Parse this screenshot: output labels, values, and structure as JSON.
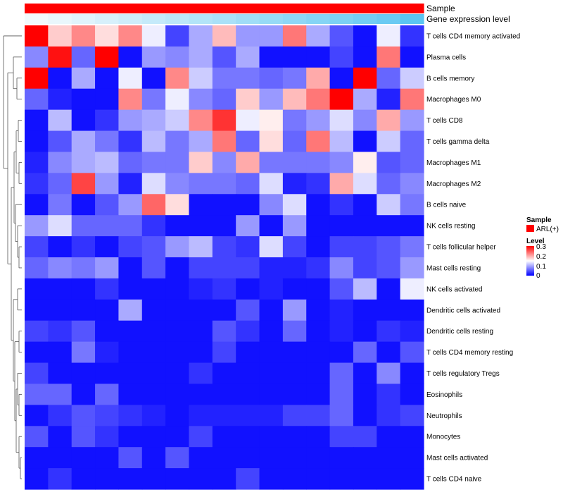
{
  "chart_data": {
    "type": "heatmap",
    "colors": {
      "low": "#0000FF",
      "mid": "#FFFFFF",
      "high": "#FF0000",
      "sample_bar": "#FF0000",
      "expr_low": "#F2FAFD",
      "expr_high": "#5BC5F2",
      "dendro": "#555555"
    },
    "annotations": [
      {
        "name": "Sample",
        "values": [
          "ARL(+)",
          "ARL(+)",
          "ARL(+)",
          "ARL(+)",
          "ARL(+)",
          "ARL(+)",
          "ARL(+)",
          "ARL(+)",
          "ARL(+)",
          "ARL(+)",
          "ARL(+)",
          "ARL(+)",
          "ARL(+)",
          "ARL(+)",
          "ARL(+)",
          "ARL(+)",
          "ARL(+)"
        ]
      },
      {
        "name": "Gene expression level",
        "values": [
          0.0,
          0.06,
          0.12,
          0.18,
          0.24,
          0.3,
          0.36,
          0.42,
          0.48,
          0.54,
          0.6,
          0.66,
          0.72,
          0.78,
          0.84,
          0.9,
          1.0
        ]
      }
    ],
    "rows": [
      "T cells CD4 memory activated",
      "Plasma cells",
      "B cells memory",
      "Macrophages M0",
      "T cells CD8",
      "T cells gamma delta",
      "Macrophages M1",
      "Macrophages M2",
      "B cells naive",
      "NK cells resting",
      "T cells follicular helper",
      "Mast cells resting",
      "NK cells activated",
      "Dendritic cells activated",
      "Dendritic cells resting",
      "T cells CD4 memory resting",
      "T cells regulatory  Tregs",
      "Eosinophils",
      "Neutrophils",
      "Monocytes",
      "Mast cells activated",
      "T cells CD4 naive"
    ],
    "values": [
      [
        0.3,
        0.18,
        0.22,
        0.17,
        0.22,
        0.14,
        0.04,
        0.1,
        0.19,
        0.09,
        0.09,
        0.23,
        0.1,
        0.05,
        0.01,
        0.14,
        0.03
      ],
      [
        0.08,
        0.29,
        0.06,
        0.3,
        0.01,
        0.09,
        0.08,
        0.1,
        0.05,
        0.1,
        0.01,
        0.01,
        0.01,
        0.04,
        0.01,
        0.23,
        0.01
      ],
      [
        0.3,
        0.01,
        0.1,
        0.01,
        0.14,
        0.01,
        0.22,
        0.12,
        0.07,
        0.07,
        0.06,
        0.07,
        0.2,
        0.01,
        0.3,
        0.06,
        0.12
      ],
      [
        0.06,
        0.02,
        0.01,
        0.01,
        0.22,
        0.07,
        0.14,
        0.08,
        0.06,
        0.18,
        0.09,
        0.19,
        0.23,
        0.3,
        0.1,
        0.02,
        0.23
      ],
      [
        0.01,
        0.11,
        0.01,
        0.03,
        0.09,
        0.1,
        0.12,
        0.22,
        0.27,
        0.14,
        0.16,
        0.07,
        0.09,
        0.13,
        0.08,
        0.2,
        0.09
      ],
      [
        0.01,
        0.05,
        0.1,
        0.07,
        0.03,
        0.11,
        0.07,
        0.1,
        0.23,
        0.06,
        0.17,
        0.06,
        0.23,
        0.11,
        0.01,
        0.12,
        0.06
      ],
      [
        0.02,
        0.08,
        0.1,
        0.11,
        0.06,
        0.07,
        0.07,
        0.18,
        0.08,
        0.2,
        0.07,
        0.07,
        0.07,
        0.08,
        0.16,
        0.05,
        0.06
      ],
      [
        0.03,
        0.06,
        0.26,
        0.09,
        0.02,
        0.13,
        0.08,
        0.07,
        0.07,
        0.06,
        0.13,
        0.02,
        0.03,
        0.2,
        0.13,
        0.06,
        0.08
      ],
      [
        0.01,
        0.07,
        0.01,
        0.05,
        0.09,
        0.24,
        0.17,
        0.01,
        0.01,
        0.01,
        0.08,
        0.13,
        0.01,
        0.03,
        0.01,
        0.12,
        0.07
      ],
      [
        0.09,
        0.13,
        0.06,
        0.06,
        0.06,
        0.03,
        0.01,
        0.01,
        0.01,
        0.09,
        0.01,
        0.09,
        0.01,
        0.01,
        0.01,
        0.01,
        0.01
      ],
      [
        0.04,
        0.01,
        0.03,
        0.01,
        0.04,
        0.05,
        0.09,
        0.11,
        0.04,
        0.03,
        0.13,
        0.04,
        0.01,
        0.04,
        0.04,
        0.05,
        0.07
      ],
      [
        0.06,
        0.08,
        0.07,
        0.09,
        0.01,
        0.05,
        0.01,
        0.04,
        0.04,
        0.04,
        0.02,
        0.02,
        0.03,
        0.08,
        0.04,
        0.05,
        0.09
      ],
      [
        0.01,
        0.01,
        0.01,
        0.03,
        0.01,
        0.01,
        0.01,
        0.02,
        0.03,
        0.01,
        0.02,
        0.01,
        0.01,
        0.05,
        0.11,
        0.01,
        0.14
      ],
      [
        0.01,
        0.01,
        0.01,
        0.01,
        0.1,
        0.01,
        0.01,
        0.01,
        0.01,
        0.05,
        0.01,
        0.09,
        0.01,
        0.02,
        0.01,
        0.01,
        0.01
      ],
      [
        0.04,
        0.03,
        0.05,
        0.01,
        0.01,
        0.01,
        0.01,
        0.01,
        0.05,
        0.03,
        0.01,
        0.06,
        0.01,
        0.02,
        0.01,
        0.03,
        0.02
      ],
      [
        0.01,
        0.01,
        0.07,
        0.02,
        0.01,
        0.01,
        0.01,
        0.01,
        0.04,
        0.01,
        0.01,
        0.01,
        0.01,
        0.01,
        0.06,
        0.01,
        0.05
      ],
      [
        0.04,
        0.01,
        0.01,
        0.01,
        0.01,
        0.01,
        0.01,
        0.03,
        0.01,
        0.01,
        0.01,
        0.01,
        0.01,
        0.06,
        0.01,
        0.08,
        0.01
      ],
      [
        0.06,
        0.06,
        0.01,
        0.06,
        0.01,
        0.01,
        0.01,
        0.01,
        0.01,
        0.01,
        0.01,
        0.01,
        0.01,
        0.06,
        0.01,
        0.03,
        0.01
      ],
      [
        0.01,
        0.03,
        0.05,
        0.04,
        0.03,
        0.02,
        0.01,
        0.02,
        0.02,
        0.02,
        0.02,
        0.04,
        0.04,
        0.06,
        0.01,
        0.03,
        0.04
      ],
      [
        0.05,
        0.01,
        0.05,
        0.03,
        0.01,
        0.01,
        0.01,
        0.04,
        0.01,
        0.01,
        0.01,
        0.01,
        0.01,
        0.04,
        0.04,
        0.01,
        0.01
      ],
      [
        0.01,
        0.01,
        0.01,
        0.01,
        0.05,
        0.01,
        0.05,
        0.01,
        0.01,
        0.01,
        0.01,
        0.01,
        0.01,
        0.01,
        0.01,
        0.01,
        0.01
      ],
      [
        0.01,
        0.03,
        0.01,
        0.01,
        0.01,
        0.01,
        0.01,
        0.01,
        0.01,
        0.04,
        0.01,
        0.01,
        0.01,
        0.01,
        0.01,
        0.01,
        0.01
      ]
    ],
    "color_range": [
      0,
      0.3
    ],
    "legend": {
      "sample_title": "Sample",
      "sample_item": "ARL(+)",
      "level_title": "Level",
      "ticks": [
        "0.3",
        "0.2",
        "0.1",
        "0"
      ]
    }
  }
}
